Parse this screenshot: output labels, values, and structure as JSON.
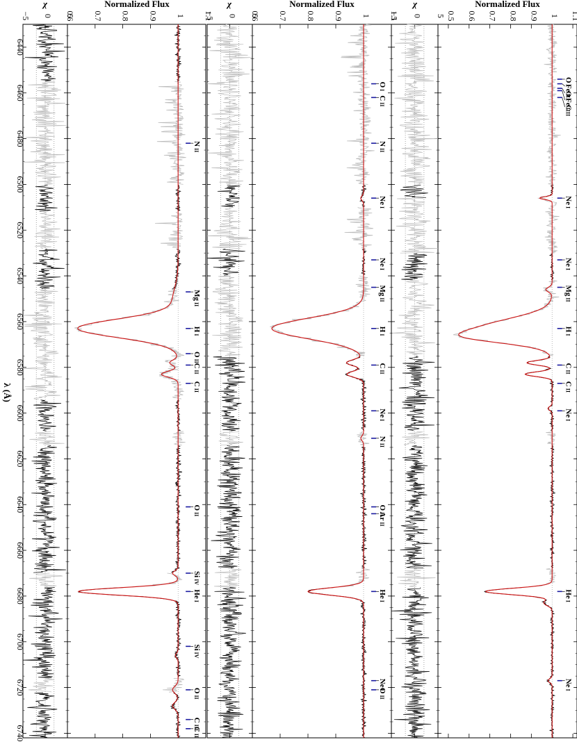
{
  "figure": {
    "x_axis_label": "λ (Å)",
    "flux_axis_label": "Normalized Flux",
    "chi_axis_label": "χ"
  },
  "chart_data": [
    {
      "type": "line",
      "panel": "left",
      "xlabel": "λ (Å)",
      "xlim": [
        6430,
        6742
      ],
      "x_ticks": [
        6440,
        6460,
        6480,
        6500,
        6520,
        6540,
        6560,
        6580,
        6600,
        6620,
        6640,
        6660,
        6680,
        6700,
        6720,
        6740
      ],
      "flux": {
        "ylabel": "Normalized Flux",
        "ylim": [
          0.6,
          1.1
        ],
        "y_ticks": [
          "0.6",
          "0.7",
          "0.8",
          "0.9",
          "1",
          "1.1"
        ],
        "continuum": 1.0,
        "absorption": [
          {
            "center": 6563,
            "depth": 0.36,
            "width": 4.0
          },
          {
            "center": 6578,
            "depth": 0.03,
            "width": 1.2
          },
          {
            "center": 6583,
            "depth": 0.06,
            "width": 1.3
          },
          {
            "center": 6551,
            "depth": 0.02,
            "width": 6.0
          },
          {
            "center": 6678,
            "depth": 0.36,
            "width": 1.6
          },
          {
            "center": 6670,
            "depth": 0.02,
            "width": 1.0
          },
          {
            "center": 6706,
            "depth": 0.01,
            "width": 1.0
          },
          {
            "center": 6721,
            "depth": 0.02,
            "width": 1.5
          },
          {
            "center": 6728,
            "depth": 0.02,
            "width": 1.5
          }
        ]
      },
      "chi": {
        "ylabel": "χ",
        "ylim": [
          -5,
          5
        ],
        "y_ticks": [
          "−5",
          "0",
          "5"
        ]
      },
      "annotations": [
        {
          "label": "N",
          "ion": "II",
          "wavelength": 6482
        },
        {
          "label": "Mg",
          "ion": "II",
          "wavelength": 6547
        },
        {
          "label": "H",
          "ion": "I",
          "wavelength": 6563
        },
        {
          "label": "O",
          "ion": "II",
          "wavelength": 6574
        },
        {
          "label": "C",
          "ion": "II",
          "wavelength": 6579
        },
        {
          "label": "C",
          "ion": "II",
          "wavelength": 6587
        },
        {
          "label": "O",
          "ion": "II",
          "wavelength": 6641
        },
        {
          "label": "Si",
          "ion": "IV",
          "wavelength": 6670
        },
        {
          "label": "He",
          "ion": "I",
          "wavelength": 6678
        },
        {
          "label": "Si",
          "ion": "IV",
          "wavelength": 6702
        },
        {
          "label": "O",
          "ion": "II",
          "wavelength": 6721
        },
        {
          "label": "C",
          "ion": "III",
          "wavelength": 6734
        },
        {
          "label": "C",
          "ion": "II",
          "wavelength": 6738
        }
      ]
    },
    {
      "type": "line",
      "panel": "middle",
      "xlabel": "λ (Å)",
      "xlim": [
        6430,
        6742
      ],
      "x_ticks": [
        6440,
        6460,
        6480,
        6500,
        6520,
        6540,
        6560,
        6580,
        6600,
        6620,
        6640,
        6660,
        6680,
        6700,
        6720,
        6740
      ],
      "flux": {
        "ylabel": "Normalized Flux",
        "ylim": [
          0.6,
          1.1
        ],
        "y_ticks": [
          "0.6",
          "0.7",
          "0.8",
          "0.9",
          "1",
          "1.1"
        ],
        "continuum": 1.0,
        "absorption": [
          {
            "center": 6563,
            "depth": 0.33,
            "width": 4.5
          },
          {
            "center": 6578,
            "depth": 0.06,
            "width": 1.3
          },
          {
            "center": 6583,
            "depth": 0.06,
            "width": 1.3
          },
          {
            "center": 6678,
            "depth": 0.2,
            "width": 1.6
          },
          {
            "center": 6611,
            "depth": 0.01,
            "width": 1.0
          },
          {
            "center": 6402,
            "depth": 0.01,
            "width": 1.0
          },
          {
            "center": 6506,
            "depth": 0.01,
            "width": 1.0
          }
        ]
      },
      "chi": {
        "ylabel": "χ",
        "ylim": [
          -5,
          5
        ],
        "y_ticks": [
          "−5",
          "0",
          "5"
        ]
      },
      "annotations": [
        {
          "label": "O",
          "ion": "I",
          "wavelength": 6456
        },
        {
          "label": "C",
          "ion": "II",
          "wavelength": 6462
        },
        {
          "label": "N",
          "ion": "II",
          "wavelength": 6482
        },
        {
          "label": "Ne",
          "ion": "I",
          "wavelength": 6506
        },
        {
          "label": "Ne",
          "ion": "I",
          "wavelength": 6533
        },
        {
          "label": "Mg",
          "ion": "II",
          "wavelength": 6545
        },
        {
          "label": "H",
          "ion": "I",
          "wavelength": 6563
        },
        {
          "label": "C",
          "ion": "II",
          "wavelength": 6579
        },
        {
          "label": "Ne",
          "ion": "I",
          "wavelength": 6599
        },
        {
          "label": "N",
          "ion": "II",
          "wavelength": 6611
        },
        {
          "label": "O",
          "ion": "II",
          "wavelength": 6641
        },
        {
          "label": "Ar",
          "ion": "II",
          "wavelength": 6644
        },
        {
          "label": "He",
          "ion": "I",
          "wavelength": 6678
        },
        {
          "label": "Ne",
          "ion": "I",
          "wavelength": 6717
        },
        {
          "label": "O",
          "ion": "II",
          "wavelength": 6721
        }
      ]
    },
    {
      "type": "line",
      "panel": "right",
      "xlabel": "λ (Å)",
      "xlim": [
        6430,
        6742
      ],
      "x_ticks": [
        6440,
        6460,
        6480,
        6500,
        6520,
        6540,
        6560,
        6580,
        6600,
        6620,
        6640,
        6660,
        6680,
        6700,
        6720,
        6740
      ],
      "flux": {
        "ylabel": "Normalized Flux",
        "ylim": [
          0.45,
          1.12
        ],
        "y_ticks": [
          "0.5",
          "0.6",
          "0.7",
          "0.8",
          "0.9",
          "1",
          "1.1"
        ],
        "continuum": 1.0,
        "absorption": [
          {
            "center": 6563,
            "depth": 0.33,
            "width": 4.5
          },
          {
            "center": 6567,
            "depth": 0.2,
            "width": 2.5
          },
          {
            "center": 6578,
            "depth": 0.12,
            "width": 1.0
          },
          {
            "center": 6583,
            "depth": 0.13,
            "width": 1.0
          },
          {
            "center": 6678,
            "depth": 0.32,
            "width": 1.4
          },
          {
            "center": 6683,
            "depth": 0.04,
            "width": 1.2
          },
          {
            "center": 6506,
            "depth": 0.06,
            "width": 0.6
          },
          {
            "center": 6546,
            "depth": 0.03,
            "width": 1.0
          },
          {
            "center": 6598,
            "depth": 0.02,
            "width": 0.8
          },
          {
            "center": 6717,
            "depth": 0.02,
            "width": 0.8
          }
        ]
      },
      "chi": {
        "ylabel": "χ",
        "ylim": [
          -5,
          5
        ],
        "y_ticks": [
          "−5",
          "0",
          "5"
        ]
      },
      "annotations": [
        {
          "label": "O",
          "ion": "I",
          "wavelength": 6454
        },
        {
          "label": "Fe",
          "ion": "II",
          "wavelength": 6456
        },
        {
          "label": "O",
          "ion": "I",
          "wavelength": 6458
        },
        {
          "label": "Fe",
          "ion": "II",
          "wavelength": 6459
        },
        {
          "label": "C",
          "ion": "II",
          "wavelength": 6462
        },
        {
          "label": "Ne",
          "ion": "I",
          "wavelength": 6506
        },
        {
          "label": "Ne",
          "ion": "I",
          "wavelength": 6533
        },
        {
          "label": "Mg",
          "ion": "II",
          "wavelength": 6545
        },
        {
          "label": "H",
          "ion": "I",
          "wavelength": 6563
        },
        {
          "label": "C",
          "ion": "II",
          "wavelength": 6579
        },
        {
          "label": "C",
          "ion": "II",
          "wavelength": 6587
        },
        {
          "label": "Ne",
          "ion": "I",
          "wavelength": 6599
        },
        {
          "label": "He",
          "ion": "I",
          "wavelength": 6678
        },
        {
          "label": "Ne",
          "ion": "I",
          "wavelength": 6717
        }
      ]
    }
  ],
  "colors": {
    "observed": "#000000",
    "masked": "#bbbbbb",
    "model": "#cc1111",
    "model_faint": "#f0c0c0",
    "marker": "#1a1aa0",
    "frame": "#000000"
  }
}
